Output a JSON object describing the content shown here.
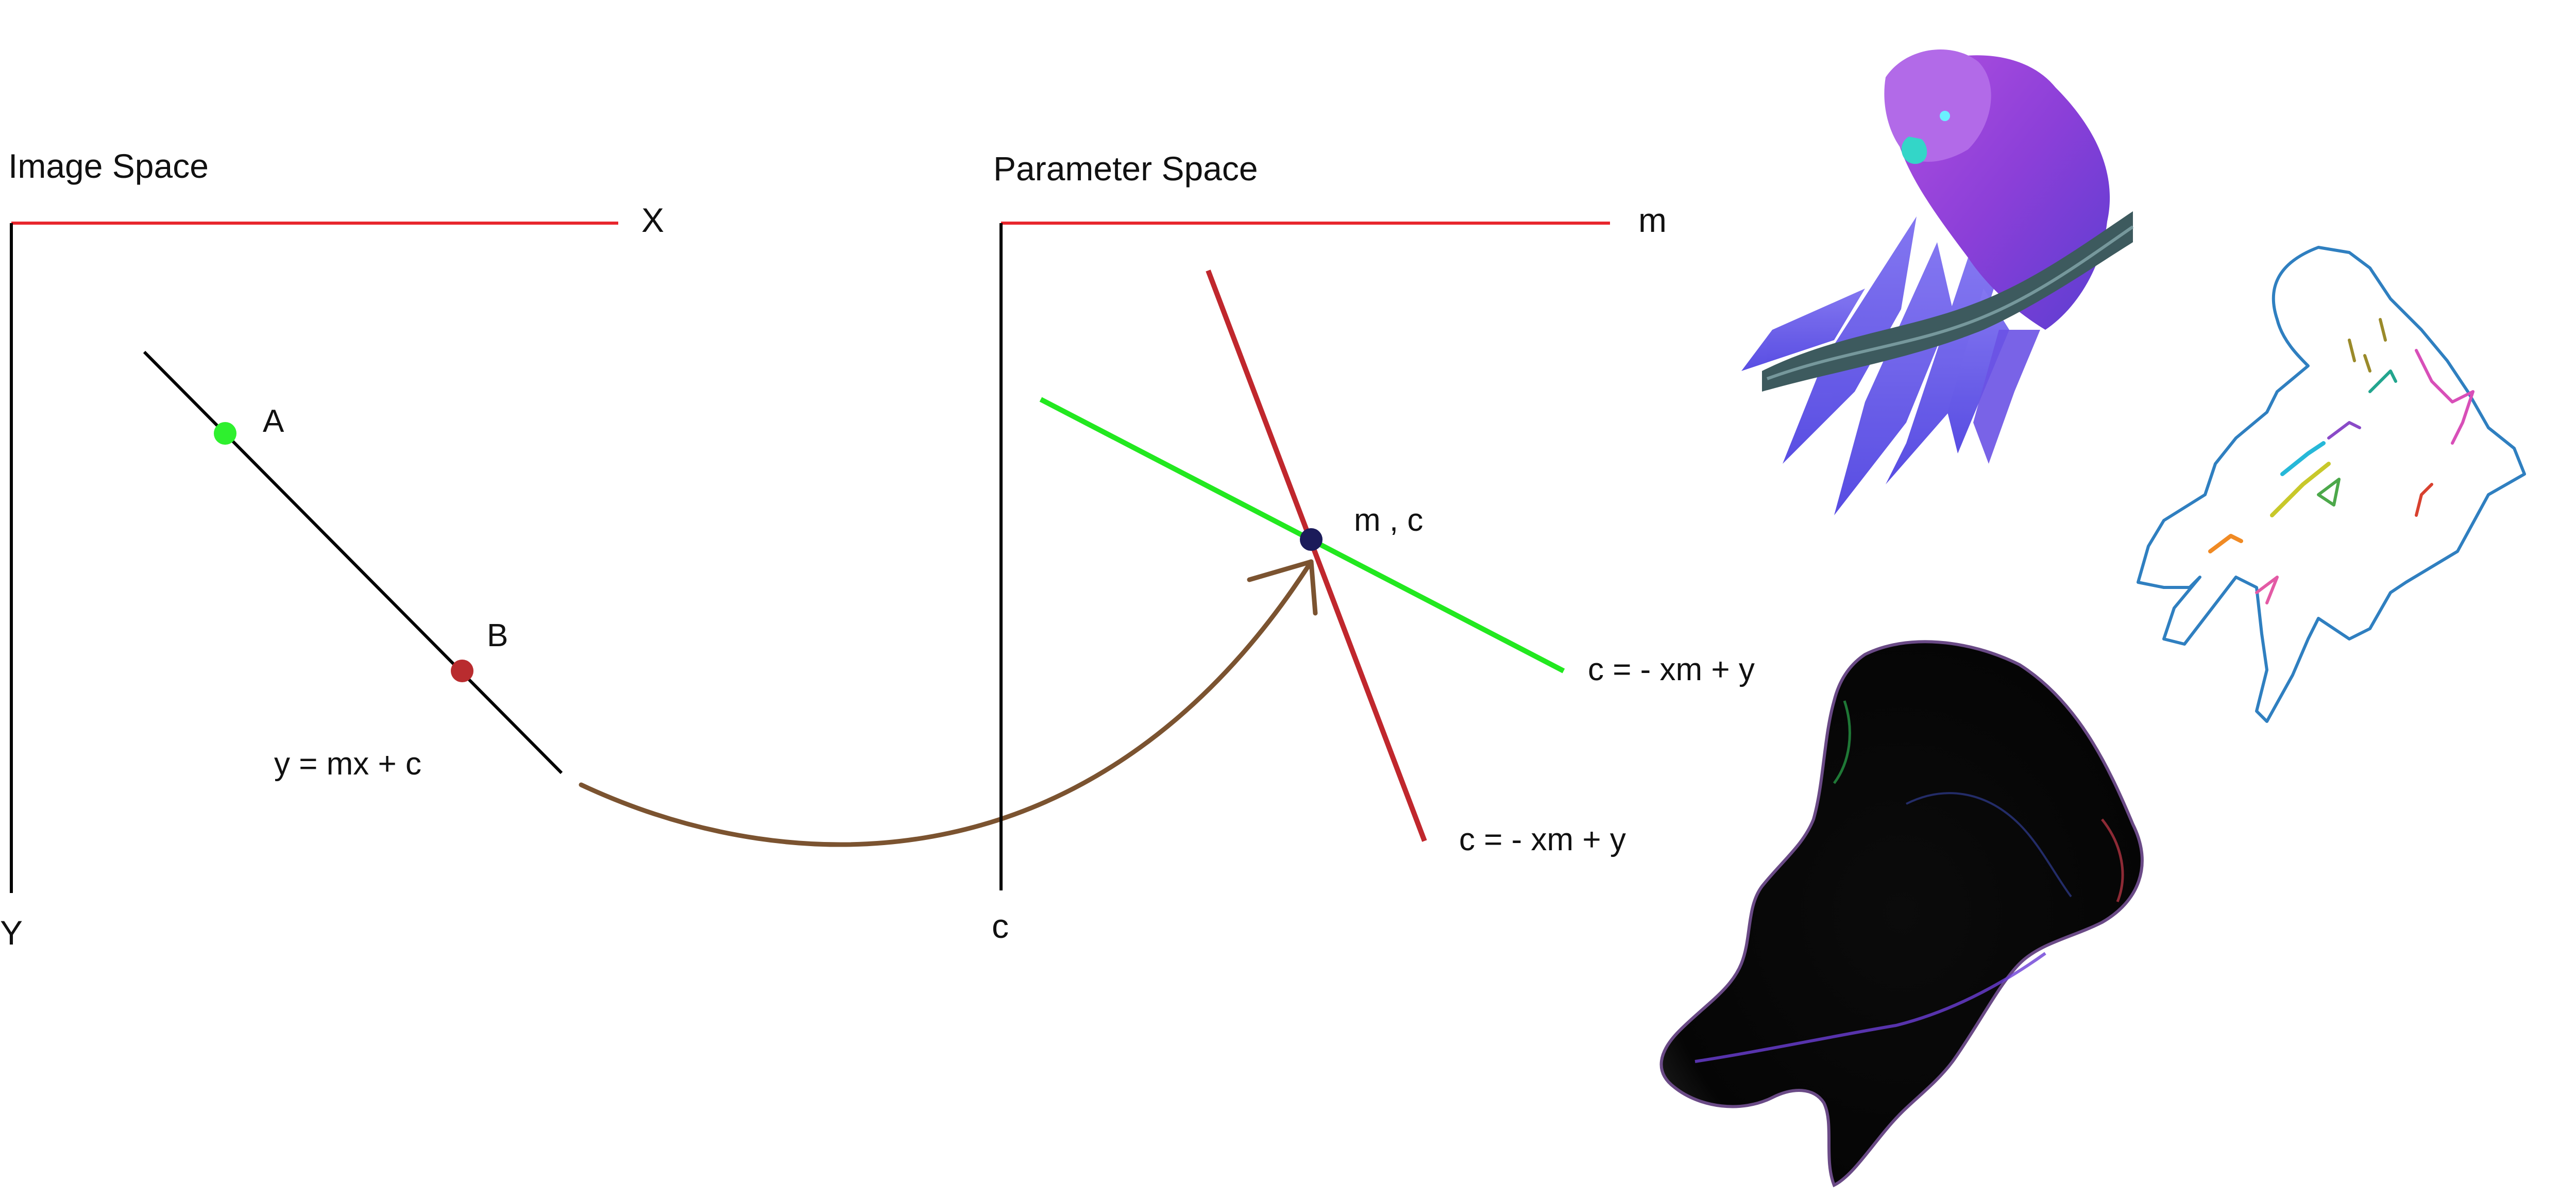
{
  "image_space": {
    "title": "Image Space",
    "axis_x_label": "X",
    "axis_y_label": "Y",
    "point_a_label": "A",
    "point_b_label": "B",
    "line_equation": "y = mx + c"
  },
  "parameter_space": {
    "title": "Parameter Space",
    "axis_m_label": "m",
    "axis_c_label": "c",
    "intersection_label": "m , c",
    "equation_green": "c = - xm + y",
    "equation_red": "c = - xm + y"
  },
  "colors": {
    "axis_x": "#e8262d",
    "axis_y": "#000000",
    "image_line": "#000000",
    "point_a": "#2ef02e",
    "point_b": "#b92c2f",
    "green_line": "#22e81f",
    "red_line": "#c0272d",
    "intersection": "#1b1b5a",
    "arrow": "#7b5330",
    "text": "#111111"
  },
  "illustrations": {
    "parrot_photo": "parrot-inverted-color-image",
    "edge_contours": "parrot-edge-contour-drawing",
    "gradient_image": "parrot-gradient-magnitude-image"
  }
}
